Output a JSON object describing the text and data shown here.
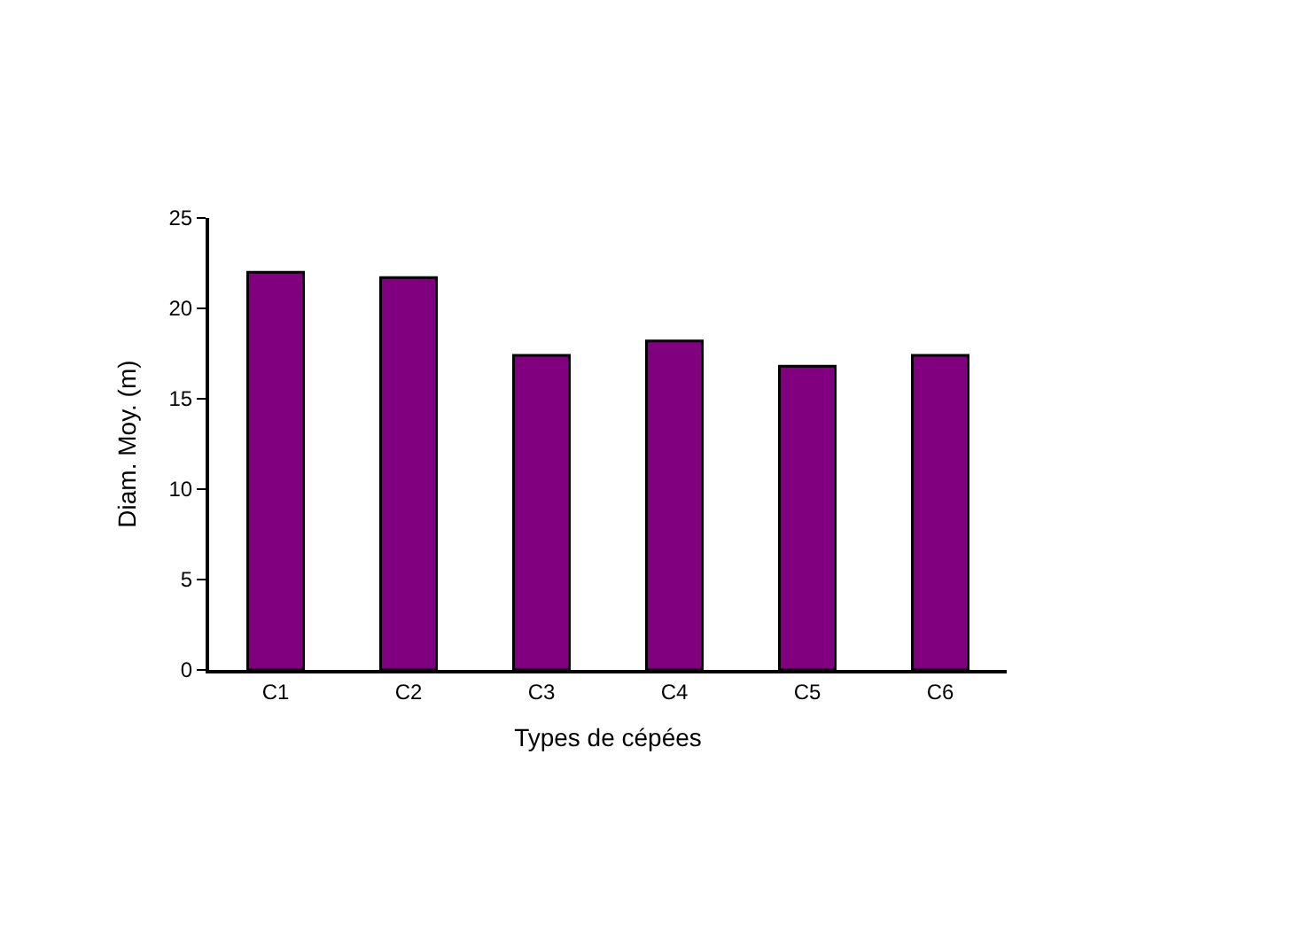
{
  "chart_data": {
    "type": "bar",
    "xlabel": "Types de cépées",
    "ylabel": "Diam. Moy. (m)",
    "categories": [
      "C1",
      "C2",
      "C3",
      "C4",
      "C5",
      "C6"
    ],
    "values": [
      22.0,
      21.7,
      17.4,
      18.2,
      16.8,
      17.4
    ],
    "color": "#800080",
    "ylim": [
      0,
      25
    ],
    "yticks": [
      0,
      5,
      10,
      15,
      20,
      25
    ]
  }
}
